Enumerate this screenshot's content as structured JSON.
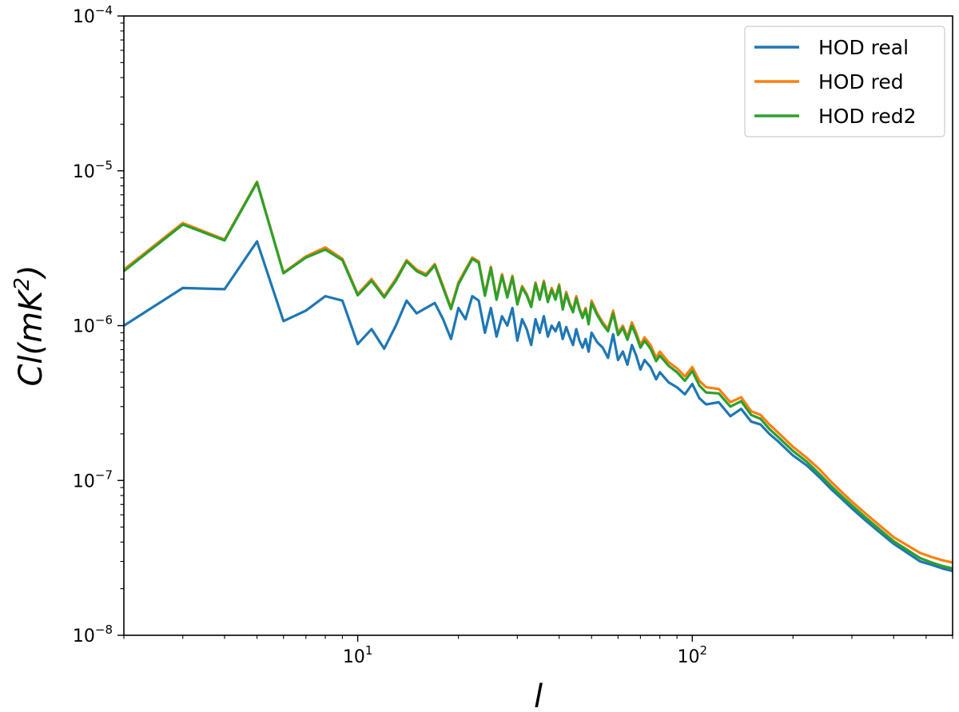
{
  "chart_data": {
    "type": "line",
    "xlabel": "l",
    "ylabel": "Cl(mK^2)",
    "ylabel_parts": {
      "main": "Cl(mK",
      "sup": "2",
      "close": ")"
    },
    "x_scale": "log",
    "y_scale": "log",
    "xlim": [
      2,
      600
    ],
    "ylim": [
      1e-08,
      0.0001
    ],
    "x_major_ticks": [
      10,
      100
    ],
    "y_major_ticks": [
      1e-08,
      1e-07,
      1e-06,
      1e-05,
      0.0001
    ],
    "x_tick_labels": [
      {
        "value": 10,
        "base": "10",
        "exp": "1"
      },
      {
        "value": 100,
        "base": "10",
        "exp": "2"
      }
    ],
    "y_tick_labels": [
      {
        "value": 1e-08,
        "base": "10",
        "exp": "−8"
      },
      {
        "value": 1e-07,
        "base": "10",
        "exp": "−7"
      },
      {
        "value": 1e-06,
        "base": "10",
        "exp": "−6"
      },
      {
        "value": 1e-05,
        "base": "10",
        "exp": "−5"
      },
      {
        "value": 0.0001,
        "base": "10",
        "exp": "−4"
      }
    ],
    "grid": false,
    "legend_position": "top-right",
    "series": [
      {
        "name": "HOD real",
        "color": "#1f77b4",
        "x": [
          2,
          3,
          4,
          5,
          6,
          7,
          8,
          9,
          10,
          11,
          12,
          13,
          14,
          15,
          16,
          17,
          18,
          19,
          20,
          21,
          22,
          23,
          24,
          25,
          26,
          27,
          28,
          29,
          30,
          31,
          32,
          33,
          34,
          35,
          36,
          37,
          38,
          39,
          40,
          41,
          42,
          43,
          44,
          45,
          46,
          47,
          48,
          49,
          50,
          52,
          54,
          56,
          58,
          60,
          62,
          64,
          66,
          68,
          70,
          72,
          75,
          78,
          80,
          85,
          90,
          95,
          100,
          105,
          110,
          120,
          130,
          140,
          150,
          160,
          170,
          180,
          200,
          220,
          240,
          260,
          280,
          300,
          330,
          360,
          400,
          440,
          480,
          520,
          560,
          600
        ],
        "y": [
          1e-06,
          1.75e-06,
          1.72e-06,
          3.5e-06,
          1.07e-06,
          1.25e-06,
          1.55e-06,
          1.45e-06,
          7.6e-07,
          9.5e-07,
          7.1e-07,
          1e-06,
          1.45e-06,
          1.2e-06,
          1.3e-06,
          1.4e-06,
          1.1e-06,
          8.2e-07,
          1.3e-06,
          1.1e-06,
          1.55e-06,
          1.45e-06,
          9e-07,
          1.3e-06,
          8.5e-07,
          1.15e-06,
          1e-06,
          1.3e-06,
          8e-07,
          1.1e-06,
          9.5e-07,
          7.5e-07,
          1.1e-06,
          9e-07,
          1.15e-06,
          8.5e-07,
          1e-06,
          9.2e-07,
          1.05e-06,
          8.2e-07,
          9.8e-07,
          8.5e-07,
          7.5e-07,
          9.5e-07,
          8e-07,
          7.2e-07,
          8.2e-07,
          6.8e-07,
          9e-07,
          7.8e-07,
          7.2e-07,
          6.2e-07,
          8.8e-07,
          6e-07,
          6.8e-07,
          5.6e-07,
          7.5e-07,
          6.4e-07,
          5.2e-07,
          6e-07,
          5.4e-07,
          4.5e-07,
          5e-07,
          4.3e-07,
          4e-07,
          3.6e-07,
          4.2e-07,
          3.4e-07,
          3.1e-07,
          3.2e-07,
          2.6e-07,
          2.9e-07,
          2.4e-07,
          2.3e-07,
          2e-07,
          1.8e-07,
          1.45e-07,
          1.25e-07,
          1.05e-07,
          8.8e-08,
          7.6e-08,
          6.6e-08,
          5.5e-08,
          4.7e-08,
          3.9e-08,
          3.4e-08,
          3e-08,
          2.85e-08,
          2.7e-08,
          2.6e-08
        ]
      },
      {
        "name": "HOD red",
        "color": "#ff7f0e",
        "x": [
          2,
          3,
          4,
          5,
          6,
          7,
          8,
          9,
          10,
          11,
          12,
          13,
          14,
          15,
          16,
          17,
          18,
          19,
          20,
          21,
          22,
          23,
          24,
          25,
          26,
          27,
          28,
          29,
          30,
          31,
          32,
          33,
          34,
          35,
          36,
          37,
          38,
          39,
          40,
          41,
          42,
          43,
          44,
          45,
          46,
          47,
          48,
          49,
          50,
          52,
          54,
          56,
          58,
          60,
          62,
          64,
          66,
          68,
          70,
          72,
          75,
          78,
          80,
          85,
          90,
          95,
          100,
          105,
          110,
          120,
          130,
          140,
          150,
          160,
          170,
          180,
          200,
          220,
          240,
          260,
          280,
          300,
          330,
          360,
          400,
          440,
          480,
          520,
          560,
          600
        ],
        "y": [
          2.3e-06,
          4.6e-06,
          3.6e-06,
          8.5e-06,
          2.2e-06,
          2.8e-06,
          3.2e-06,
          2.7e-06,
          1.6e-06,
          2e-06,
          1.55e-06,
          2e-06,
          2.65e-06,
          2.3e-06,
          2.15e-06,
          2.5e-06,
          1.8e-06,
          1.3e-06,
          1.9e-06,
          2.3e-06,
          2.75e-06,
          2.6e-06,
          1.6e-06,
          2.4e-06,
          1.5e-06,
          2.15e-06,
          1.55e-06,
          2.1e-06,
          1.4e-06,
          1.8e-06,
          1.6e-06,
          1.35e-06,
          1.9e-06,
          1.5e-06,
          1.95e-06,
          1.45e-06,
          1.75e-06,
          1.5e-06,
          1.85e-06,
          1.3e-06,
          1.65e-06,
          1.4e-06,
          1.25e-06,
          1.55e-06,
          1.3e-06,
          1.15e-06,
          1.3e-06,
          1.05e-06,
          1.45e-06,
          1.2e-06,
          1.05e-06,
          9.5e-07,
          1.25e-06,
          9e-07,
          1e-06,
          8.4e-07,
          1.05e-06,
          9e-07,
          7.5e-07,
          8.4e-07,
          7.5e-07,
          6.2e-07,
          6.8e-07,
          5.8e-07,
          5.3e-07,
          4.7e-07,
          5.4e-07,
          4.4e-07,
          4e-07,
          3.9e-07,
          3.2e-07,
          3.45e-07,
          2.8e-07,
          2.65e-07,
          2.3e-07,
          2.05e-07,
          1.65e-07,
          1.4e-07,
          1.18e-07,
          9.8e-08,
          8.4e-08,
          7.3e-08,
          6.1e-08,
          5.2e-08,
          4.3e-08,
          3.8e-08,
          3.4e-08,
          3.2e-08,
          3.05e-08,
          2.95e-08
        ]
      },
      {
        "name": "HOD red2",
        "color": "#2ca02c",
        "x": [
          2,
          3,
          4,
          5,
          6,
          7,
          8,
          9,
          10,
          11,
          12,
          13,
          14,
          15,
          16,
          17,
          18,
          19,
          20,
          21,
          22,
          23,
          24,
          25,
          26,
          27,
          28,
          29,
          30,
          31,
          32,
          33,
          34,
          35,
          36,
          37,
          38,
          39,
          40,
          41,
          42,
          43,
          44,
          45,
          46,
          47,
          48,
          49,
          50,
          52,
          54,
          56,
          58,
          60,
          62,
          64,
          66,
          68,
          70,
          72,
          75,
          78,
          80,
          85,
          90,
          95,
          100,
          105,
          110,
          120,
          130,
          140,
          150,
          160,
          170,
          180,
          200,
          220,
          240,
          260,
          280,
          300,
          330,
          360,
          400,
          440,
          480,
          520,
          560,
          600
        ],
        "y": [
          2.25e-06,
          4.5e-06,
          3.55e-06,
          8.4e-06,
          2.18e-06,
          2.75e-06,
          3.1e-06,
          2.65e-06,
          1.57e-06,
          1.95e-06,
          1.52e-06,
          1.95e-06,
          2.6e-06,
          2.25e-06,
          2.1e-06,
          2.45e-06,
          1.75e-06,
          1.28e-06,
          1.85e-06,
          2.25e-06,
          2.7e-06,
          2.55e-06,
          1.56e-06,
          2.35e-06,
          1.47e-06,
          2.1e-06,
          1.52e-06,
          2.05e-06,
          1.37e-06,
          1.76e-06,
          1.57e-06,
          1.32e-06,
          1.86e-06,
          1.47e-06,
          1.9e-06,
          1.42e-06,
          1.7e-06,
          1.47e-06,
          1.8e-06,
          1.27e-06,
          1.6e-06,
          1.37e-06,
          1.22e-06,
          1.5e-06,
          1.27e-06,
          1.12e-06,
          1.27e-06,
          1.02e-06,
          1.4e-06,
          1.17e-06,
          1.02e-06,
          9.2e-07,
          1.2e-06,
          8.7e-07,
          9.7e-07,
          8.1e-07,
          1e-06,
          8.6e-07,
          7.2e-07,
          8e-07,
          7.1e-07,
          5.9e-07,
          6.4e-07,
          5.5e-07,
          5e-07,
          4.4e-07,
          5.1e-07,
          4.1e-07,
          3.7e-07,
          3.65e-07,
          3e-07,
          3.25e-07,
          2.65e-07,
          2.5e-07,
          2.15e-07,
          1.92e-07,
          1.55e-07,
          1.32e-07,
          1.1e-07,
          9.2e-08,
          7.9e-08,
          6.9e-08,
          5.75e-08,
          4.9e-08,
          4.05e-08,
          3.55e-08,
          3.15e-08,
          2.95e-08,
          2.8e-08,
          2.7e-08
        ]
      }
    ]
  }
}
